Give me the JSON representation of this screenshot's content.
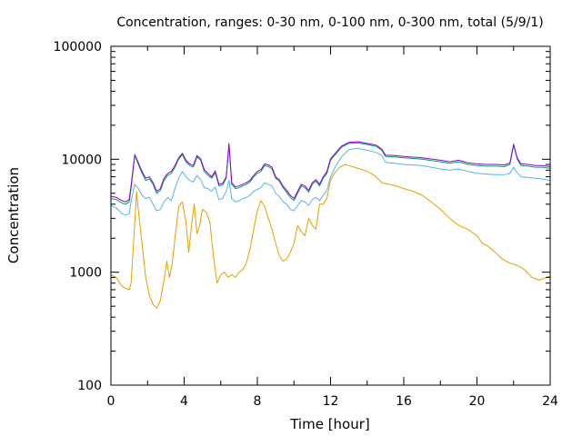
{
  "chart_data": {
    "type": "line",
    "title": "Concentration, ranges: 0-30 nm, 0-100 nm, 0-300 nm, total (5/9/1)",
    "xlabel": "Time [hour]",
    "ylabel": "Concentration",
    "xlim": [
      0,
      24
    ],
    "ylim": [
      100,
      100000
    ],
    "y_scale": "log",
    "grid": false,
    "legend": "none",
    "x_ticks": [
      0,
      4,
      8,
      12,
      16,
      20,
      24
    ],
    "y_ticks": [
      100,
      1000,
      10000,
      100000
    ],
    "x_tick_labels": [
      "0",
      "4",
      "8",
      "12",
      "16",
      "20",
      "24"
    ],
    "y_tick_labels": [
      "100",
      "1000",
      "10000",
      "100000"
    ],
    "series": [
      {
        "color": "#e69f00",
        "x": [
          0,
          0.3,
          0.6,
          0.8,
          1.0,
          1.1,
          1.25,
          1.4,
          1.5,
          1.7,
          1.9,
          2.1,
          2.3,
          2.5,
          2.7,
          2.9,
          3.05,
          3.2,
          3.35,
          3.5,
          3.7,
          3.9,
          4.1,
          4.25,
          4.4,
          4.55,
          4.7,
          4.85,
          5.0,
          5.2,
          5.4,
          5.6,
          5.8,
          6.0,
          6.2,
          6.4,
          6.6,
          6.8,
          7.0,
          7.2,
          7.4,
          7.6,
          7.8,
          8.0,
          8.2,
          8.4,
          8.6,
          8.8,
          9.0,
          9.2,
          9.4,
          9.6,
          9.8,
          10.0,
          10.2,
          10.4,
          10.6,
          10.8,
          11.0,
          11.2,
          11.4,
          11.6,
          11.8,
          12.0,
          12.2,
          12.5,
          12.8,
          13.0,
          13.3,
          13.6,
          14.0,
          14.4,
          14.8,
          15.2,
          15.6,
          16.0,
          16.5,
          17.0,
          17.5,
          18.0,
          18.5,
          19.0,
          19.5,
          20.0,
          20.3,
          20.6,
          21.0,
          21.4,
          21.8,
          22.2,
          22.6,
          23.0,
          23.4,
          23.8,
          24.0
        ],
        "y": [
          950,
          900,
          750,
          720,
          700,
          800,
          2000,
          5200,
          3500,
          1800,
          900,
          620,
          520,
          480,
          560,
          850,
          1250,
          900,
          1200,
          2000,
          3800,
          4200,
          2800,
          1500,
          2600,
          4000,
          2200,
          2600,
          3600,
          3400,
          2800,
          1400,
          800,
          950,
          1000,
          900,
          950,
          900,
          1000,
          1050,
          1200,
          1600,
          2400,
          3500,
          4300,
          3800,
          3000,
          2400,
          1800,
          1400,
          1250,
          1300,
          1500,
          1800,
          2600,
          2300,
          2100,
          3000,
          2600,
          2400,
          4000,
          4000,
          4500,
          6500,
          7500,
          8500,
          9000,
          8800,
          8500,
          8200,
          7800,
          7200,
          6200,
          6000,
          5800,
          5500,
          5200,
          4800,
          4200,
          3600,
          3000,
          2600,
          2400,
          2100,
          1800,
          1700,
          1500,
          1300,
          1200,
          1150,
          1050,
          900,
          850,
          900,
          920
        ]
      },
      {
        "color": "#56b4e9",
        "x": [
          0,
          0.3,
          0.6,
          0.8,
          1.0,
          1.1,
          1.3,
          1.5,
          1.7,
          1.9,
          2.1,
          2.3,
          2.5,
          2.7,
          2.9,
          3.1,
          3.3,
          3.5,
          3.7,
          3.9,
          4.1,
          4.3,
          4.5,
          4.7,
          4.9,
          5.1,
          5.3,
          5.5,
          5.7,
          5.9,
          6.1,
          6.3,
          6.45,
          6.6,
          6.8,
          7.0,
          7.2,
          7.4,
          7.6,
          7.8,
          8.0,
          8.2,
          8.4,
          8.6,
          8.8,
          9.0,
          9.2,
          9.4,
          9.6,
          9.8,
          10.0,
          10.2,
          10.4,
          10.6,
          10.8,
          11.0,
          11.2,
          11.4,
          11.6,
          11.8,
          12.0,
          12.3,
          12.6,
          13.0,
          13.5,
          14.0,
          14.5,
          14.8,
          15.0,
          15.5,
          16.0,
          17.0,
          18.0,
          18.5,
          19.0,
          19.5,
          20.0,
          20.5,
          21.0,
          21.5,
          21.8,
          22.0,
          22.2,
          22.4,
          22.8,
          23.2,
          23.6,
          24.0
        ],
        "y": [
          3900,
          3700,
          3300,
          3200,
          3300,
          4200,
          6000,
          5500,
          4800,
          4500,
          4600,
          4000,
          3500,
          3600,
          4200,
          4600,
          4300,
          5500,
          6800,
          7800,
          7000,
          6500,
          6300,
          7200,
          6600,
          5600,
          5500,
          5200,
          5700,
          4400,
          4500,
          5200,
          6500,
          4500,
          4200,
          4300,
          4500,
          4600,
          4800,
          5200,
          5400,
          5600,
          6200,
          6000,
          5800,
          5000,
          4700,
          4200,
          4000,
          3600,
          3500,
          3900,
          4300,
          4200,
          3900,
          4400,
          4600,
          4300,
          4800,
          5300,
          7000,
          8800,
          10500,
          12200,
          12500,
          12000,
          11500,
          10800,
          9400,
          9200,
          9000,
          8800,
          8200,
          8000,
          8200,
          7800,
          7500,
          7400,
          7300,
          7300,
          7500,
          8500,
          7600,
          7000,
          6900,
          6800,
          6700,
          6500
        ]
      },
      {
        "color": "#009e73",
        "x": [
          0,
          0.3,
          0.6,
          0.8,
          1.0,
          1.1,
          1.3,
          1.5,
          1.7,
          1.9,
          2.1,
          2.3,
          2.5,
          2.7,
          2.9,
          3.1,
          3.3,
          3.5,
          3.7,
          3.9,
          4.1,
          4.3,
          4.5,
          4.7,
          4.9,
          5.1,
          5.3,
          5.5,
          5.7,
          5.9,
          6.1,
          6.3,
          6.45,
          6.6,
          6.8,
          7.0,
          7.2,
          7.4,
          7.6,
          7.8,
          8.0,
          8.2,
          8.4,
          8.6,
          8.8,
          9.0,
          9.2,
          9.4,
          9.6,
          9.8,
          10.0,
          10.2,
          10.4,
          10.6,
          10.8,
          11.0,
          11.2,
          11.4,
          11.6,
          11.8,
          12.0,
          12.3,
          12.6,
          13.0,
          13.5,
          14.0,
          14.5,
          14.8,
          15.0,
          15.5,
          16.0,
          17.0,
          18.0,
          18.5,
          19.0,
          19.5,
          20.0,
          20.5,
          21.0,
          21.5,
          21.8,
          22.0,
          22.2,
          22.4,
          22.8,
          23.2,
          23.6,
          24.0
        ],
        "y": [
          4500,
          4400,
          4100,
          4000,
          4200,
          5500,
          10800,
          9000,
          7500,
          6500,
          6700,
          6000,
          5000,
          5300,
          6500,
          7200,
          7500,
          8500,
          10000,
          11000,
          9500,
          8800,
          8500,
          10500,
          9800,
          7800,
          7200,
          6800,
          7600,
          5800,
          5900,
          6800,
          13500,
          6000,
          5500,
          5600,
          5800,
          6000,
          6300,
          7000,
          7500,
          7800,
          8800,
          8600,
          8200,
          6800,
          6400,
          5600,
          5100,
          4600,
          4300,
          5000,
          5800,
          5600,
          5100,
          6000,
          6400,
          5800,
          6800,
          7500,
          9800,
          11200,
          12800,
          13800,
          14000,
          13500,
          13000,
          12000,
          10600,
          10500,
          10300,
          10000,
          9500,
          9200,
          9500,
          9000,
          8800,
          8700,
          8700,
          8600,
          9000,
          13300,
          10000,
          8800,
          8700,
          8500,
          8500,
          8300
        ]
      },
      {
        "color": "#9400d3",
        "x": [
          0,
          0.3,
          0.6,
          0.8,
          1.0,
          1.1,
          1.3,
          1.5,
          1.7,
          1.9,
          2.1,
          2.3,
          2.5,
          2.7,
          2.9,
          3.1,
          3.3,
          3.5,
          3.7,
          3.9,
          4.1,
          4.3,
          4.5,
          4.7,
          4.9,
          5.1,
          5.3,
          5.5,
          5.7,
          5.9,
          6.1,
          6.3,
          6.45,
          6.6,
          6.8,
          7.0,
          7.2,
          7.4,
          7.6,
          7.8,
          8.0,
          8.2,
          8.4,
          8.6,
          8.8,
          9.0,
          9.2,
          9.4,
          9.6,
          9.8,
          10.0,
          10.2,
          10.4,
          10.6,
          10.8,
          11.0,
          11.2,
          11.4,
          11.6,
          11.8,
          12.0,
          12.3,
          12.6,
          13.0,
          13.5,
          14.0,
          14.5,
          14.8,
          15.0,
          15.5,
          16.0,
          17.0,
          18.0,
          18.5,
          19.0,
          19.5,
          20.0,
          20.5,
          21.0,
          21.5,
          21.8,
          22.0,
          22.2,
          22.4,
          22.8,
          23.2,
          23.6,
          24.0
        ],
        "y": [
          4700,
          4600,
          4300,
          4200,
          4400,
          5800,
          11000,
          9300,
          7800,
          6800,
          7000,
          6200,
          5200,
          5500,
          6800,
          7500,
          7800,
          8800,
          10300,
          11300,
          9800,
          9100,
          8800,
          10800,
          10100,
          8100,
          7500,
          7000,
          7900,
          6000,
          6100,
          7000,
          13800,
          6200,
          5700,
          5800,
          6000,
          6200,
          6500,
          7200,
          7800,
          8100,
          9100,
          8900,
          8500,
          7000,
          6600,
          5800,
          5300,
          4800,
          4500,
          5200,
          6000,
          5800,
          5300,
          6200,
          6600,
          6000,
          7000,
          7800,
          10100,
          11500,
          13100,
          14100,
          14300,
          13800,
          13300,
          12300,
          10900,
          10800,
          10600,
          10300,
          9800,
          9500,
          9800,
          9300,
          9100,
          9000,
          9000,
          8900,
          9300,
          13600,
          10300,
          9100,
          9000,
          8800,
          8800,
          8600
        ]
      }
    ]
  }
}
